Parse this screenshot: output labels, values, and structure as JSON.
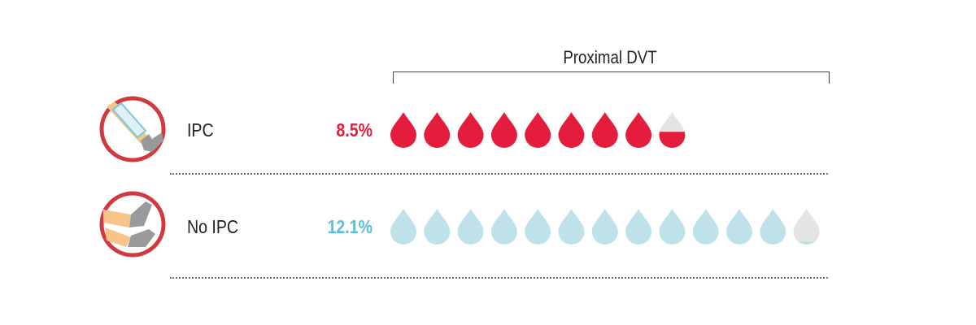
{
  "chart_data": {
    "type": "pictograph",
    "title": "Proximal DVT",
    "unit_per_icon": 1,
    "categories": [
      "IPC",
      "No IPC"
    ],
    "values": [
      8.5,
      12.1
    ],
    "value_labels": [
      "8.5%",
      "12.1%"
    ],
    "colors": {
      "IPC": "#e31d3b",
      "No IPC": "#bfe2ea",
      "empty": "#e4e4e4",
      "icon_ring": "#d0393f",
      "pct_no_ipc": "#5bbfd6"
    },
    "series": [
      {
        "label": "IPC",
        "value": 8.5,
        "icon": "leg-with-compression-sleeve-icon"
      },
      {
        "label": "No IPC",
        "value": 12.1,
        "icon": "crossed-legs-icon"
      }
    ]
  }
}
